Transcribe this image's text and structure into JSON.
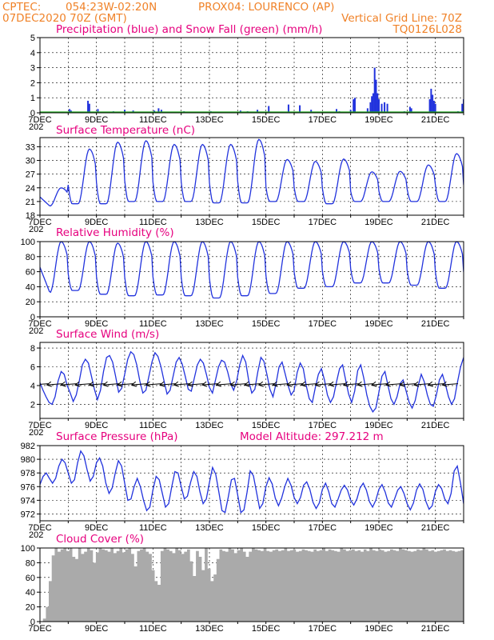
{
  "header": {
    "line1_left": "CPTEC:",
    "line1_coords": "054:23W-02:20N",
    "line1_station": "PROX04: LOURENCO (AP)",
    "line2_left": "07DEC2020 70Z (GMT)",
    "line2_right": "Vertical Grid Line: 70Z",
    "line3_right": "TQ0126L028",
    "cutoff_fragment": "202"
  },
  "colors": {
    "header": "#f08228",
    "panel_title": "#e6007e",
    "series": "#2233dd",
    "snow": "#22aa22",
    "cloud": "#aaaaaa"
  },
  "date_labels": [
    "7DEC",
    "9DEC",
    "11DEC",
    "13DEC",
    "15DEC",
    "17DEC",
    "19DEC",
    "21DEC"
  ],
  "chart_data": [
    {
      "type": "bar",
      "title": "Precipitation (blue) and Snow Fall (green) (mm/h)",
      "y_ticks": [
        "0",
        "1",
        "2",
        "3",
        "4",
        "5"
      ],
      "ylim": [
        0,
        5
      ],
      "x_start_day": 7,
      "x_end_day": 22,
      "precip_events": [
        {
          "day": 8.05,
          "value": 0.25
        },
        {
          "day": 8.1,
          "value": 0.15
        },
        {
          "day": 8.7,
          "value": 0.8
        },
        {
          "day": 8.75,
          "value": 0.6
        },
        {
          "day": 9.05,
          "value": 0.25
        },
        {
          "day": 9.6,
          "value": 0.1
        },
        {
          "day": 10.0,
          "value": 0.2
        },
        {
          "day": 10.3,
          "value": 0.15
        },
        {
          "day": 11.05,
          "value": 0.15
        },
        {
          "day": 11.2,
          "value": 0.3
        },
        {
          "day": 11.3,
          "value": 0.2
        },
        {
          "day": 12.1,
          "value": 0.1
        },
        {
          "day": 13.05,
          "value": 0.1
        },
        {
          "day": 14.1,
          "value": 0.15
        },
        {
          "day": 14.35,
          "value": 0.1
        },
        {
          "day": 14.7,
          "value": 0.2
        },
        {
          "day": 15.1,
          "value": 0.45
        },
        {
          "day": 15.8,
          "value": 0.55
        },
        {
          "day": 16.2,
          "value": 0.5
        },
        {
          "day": 16.6,
          "value": 0.2
        },
        {
          "day": 17.5,
          "value": 0.25
        },
        {
          "day": 17.6,
          "value": 0.1
        },
        {
          "day": 18.0,
          "value": 0.2
        },
        {
          "day": 18.1,
          "value": 0.9
        },
        {
          "day": 18.15,
          "value": 1.0
        },
        {
          "day": 18.6,
          "value": 0.3
        },
        {
          "day": 18.7,
          "value": 0.7
        },
        {
          "day": 18.75,
          "value": 1.1
        },
        {
          "day": 18.8,
          "value": 1.3
        },
        {
          "day": 18.85,
          "value": 3.0
        },
        {
          "day": 18.9,
          "value": 2.2
        },
        {
          "day": 18.95,
          "value": 1.3
        },
        {
          "day": 19.0,
          "value": 0.9
        },
        {
          "day": 19.1,
          "value": 0.6
        },
        {
          "day": 19.2,
          "value": 0.7
        },
        {
          "day": 19.3,
          "value": 0.6
        },
        {
          "day": 19.9,
          "value": 0.1
        },
        {
          "day": 20.1,
          "value": 0.4
        },
        {
          "day": 20.15,
          "value": 0.3
        },
        {
          "day": 20.8,
          "value": 0.9
        },
        {
          "day": 20.85,
          "value": 1.6
        },
        {
          "day": 20.9,
          "value": 1.2
        },
        {
          "day": 20.95,
          "value": 0.8
        },
        {
          "day": 21.0,
          "value": 0.6
        },
        {
          "day": 21.8,
          "value": 0.1
        },
        {
          "day": 21.95,
          "value": 0.6
        },
        {
          "day": 22.0,
          "value": 0.9
        }
      ]
    },
    {
      "type": "line",
      "title": "Surface Temperature (nC)",
      "y_ticks": [
        "18",
        "21",
        "24",
        "27",
        "30",
        "33"
      ],
      "ylim": [
        18,
        35
      ],
      "x_start_day": 7,
      "x_end_day": 22,
      "daily_max": [
        24,
        32.5,
        34,
        34.3,
        33.5,
        33.5,
        33.5,
        34.6,
        30.2,
        29.8,
        30.3,
        27.5,
        27.6,
        29,
        31.5
      ],
      "daily_min": [
        20,
        20.5,
        20.5,
        21,
        21,
        21,
        20.7,
        20.7,
        21,
        21,
        20.5,
        21,
        21,
        21,
        21
      ]
    },
    {
      "type": "line",
      "title": "Relative Humidity (%)",
      "y_ticks": [
        "0",
        "20",
        "40",
        "60",
        "80",
        "100"
      ],
      "ylim": [
        0,
        100
      ],
      "x_start_day": 7,
      "x_end_day": 22,
      "daily_max": [
        100,
        100,
        98,
        100,
        100,
        100,
        100,
        100,
        100,
        100,
        100,
        100,
        100,
        100,
        100
      ],
      "daily_min": [
        32,
        35,
        30,
        28,
        29,
        28,
        25,
        28,
        31,
        38,
        40,
        45,
        45,
        42,
        38
      ]
    },
    {
      "type": "line",
      "title": "Surface Wind (m/s)",
      "y_ticks": [
        "2",
        "4",
        "6",
        "8"
      ],
      "ylim": [
        0.5,
        8.6
      ],
      "x_start_day": 7,
      "x_end_day": 22,
      "values": [
        4.3,
        3.5,
        2.8,
        2.2,
        2,
        2.8,
        4.5,
        5.5,
        5.2,
        4,
        3.2,
        2.3,
        3,
        4.5,
        6.2,
        6.8,
        6.4,
        5,
        3.6,
        2.5,
        3.5,
        5.5,
        7,
        7.2,
        6.5,
        5,
        3.3,
        3.7,
        5.2,
        6.8,
        7.6,
        7.3,
        6.2,
        4.5,
        3.2,
        3.5,
        5,
        6.5,
        7.5,
        7.1,
        6,
        4.5,
        3.1,
        3.5,
        5,
        6.5,
        7,
        6.3,
        5,
        3.6,
        3.4,
        4.8,
        6.2,
        6.8,
        6.4,
        5.2,
        3.8,
        3.2,
        4.6,
        6,
        6.7,
        6.5,
        5.5,
        4.2,
        3.5,
        4.5,
        6.2,
        7.2,
        6.5,
        4.5,
        3.2,
        3.6,
        5.5,
        7,
        6.6,
        5.2,
        3.6,
        2.8,
        4.2,
        6,
        6.5,
        5.3,
        4,
        3,
        3.5,
        5.4,
        6.4,
        5.8,
        4,
        2.6,
        2.2,
        3.8,
        5.2,
        5.8,
        4.6,
        3,
        2.2,
        2.8,
        4.4,
        5.8,
        6.2,
        4.6,
        3.1,
        2.2,
        3.4,
        5.6,
        6.2,
        4.8,
        3,
        1.8,
        1.2,
        1.6,
        3.3,
        5,
        5.5,
        4,
        2.6,
        2,
        2.8,
        4.2,
        4.6,
        3.4,
        2.2,
        1.6,
        2.4,
        4,
        5.2,
        4.4,
        3,
        2,
        1.8,
        3,
        4.6,
        5.2,
        4.1,
        2.8,
        2,
        2.6,
        4.4,
        6,
        7
      ]
    },
    {
      "type": "line",
      "title": "Surface Pressure (hPa)",
      "y_ticks": [
        "972",
        "974",
        "976",
        "978",
        "980",
        "982"
      ],
      "ylim": [
        971,
        982
      ],
      "model_altitude_label": "Model Altitude: 297.212 m",
      "x_start_day": 7,
      "x_end_day": 22,
      "values": [
        976.3,
        977.5,
        978,
        977.2,
        976.5,
        977.2,
        979,
        980,
        979.5,
        978,
        976.5,
        977,
        979.5,
        981.2,
        980.5,
        978.5,
        976.8,
        977.5,
        979.5,
        980.2,
        979,
        976.5,
        975,
        975.8,
        978,
        979.8,
        979,
        976.5,
        974,
        974.2,
        976,
        977.2,
        976,
        974,
        972.5,
        973,
        975.5,
        977.5,
        977,
        975,
        973,
        973.5,
        976,
        978.2,
        978,
        976,
        974.2,
        974.6,
        976.6,
        978.2,
        977.5,
        975.2,
        973.5,
        974.2,
        976.6,
        978.8,
        977.8,
        975.2,
        972.5,
        972.2,
        974.5,
        977,
        977.2,
        974.8,
        972.2,
        972.6,
        975.2,
        978.3,
        977.6,
        975.2,
        972.8,
        973.5,
        976,
        977.3,
        976.4,
        974.3,
        973.2,
        974.3,
        976,
        977.2,
        976.2,
        974.4,
        973.5,
        974.4,
        976.2,
        976.7,
        975.6,
        973.7,
        972.8,
        973.6,
        975.6,
        976.5,
        975.3,
        973.5,
        973,
        974.2,
        975.5,
        976.2,
        975.5,
        974,
        973.3,
        974.2,
        975.8,
        976.5,
        975.5,
        973.8,
        973,
        974,
        975.6,
        976.3,
        975.2,
        973.6,
        973,
        974.2,
        975.5,
        976,
        975,
        973.5,
        972.6,
        973.6,
        975.5,
        976.4,
        975.6,
        973.8,
        972.7,
        973.2,
        975.3,
        976.3,
        975.7,
        974.2,
        973.5,
        975,
        978.3,
        979,
        976.5,
        973.5
      ]
    },
    {
      "type": "area",
      "title": "Cloud Cover (%)",
      "y_ticks": [
        "0",
        "20",
        "40",
        "60",
        "80",
        "100"
      ],
      "ylim": [
        0,
        100
      ],
      "x_start_day": 7,
      "x_end_day": 22,
      "values": [
        0,
        4,
        20,
        55,
        90,
        100,
        95,
        98,
        100,
        96,
        100,
        88,
        85,
        100,
        92,
        95,
        100,
        97,
        80,
        94,
        100,
        98,
        97,
        95,
        100,
        93,
        96,
        100,
        94,
        98,
        100,
        92,
        75,
        96,
        98,
        100,
        95,
        92,
        70,
        55,
        50,
        96,
        100,
        98,
        96,
        93,
        100,
        97,
        92,
        95,
        98,
        82,
        62,
        96,
        88,
        70,
        100,
        72,
        55,
        64,
        85,
        98,
        96,
        95,
        100,
        98,
        93,
        97,
        100,
        95,
        88,
        95,
        100,
        98,
        97,
        96,
        100,
        96,
        95,
        97,
        98,
        96,
        97,
        100,
        96,
        97,
        98,
        95,
        96,
        98,
        97,
        96,
        95,
        98,
        96,
        97,
        100,
        96,
        98,
        97,
        96,
        95,
        100,
        98,
        96,
        97,
        98,
        96,
        97,
        95,
        98,
        96,
        100,
        97,
        96,
        98,
        97,
        95,
        96,
        98,
        97,
        96,
        100,
        98,
        97,
        96,
        95,
        96,
        98,
        97,
        100,
        98,
        96,
        97,
        95,
        96,
        97,
        98,
        96,
        97,
        96,
        95,
        96,
        97,
        96
      ]
    }
  ]
}
